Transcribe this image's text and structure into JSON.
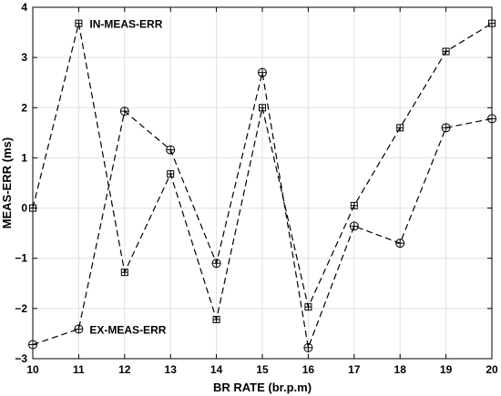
{
  "chart_data": {
    "type": "line",
    "x": [
      10,
      11,
      12,
      13,
      14,
      15,
      16,
      17,
      18,
      19,
      20
    ],
    "xlabel": "BR RATE (br.p.m)",
    "ylabel": "MEAS-ERR (ms)",
    "xlim": [
      10,
      20
    ],
    "ylim": [
      -3,
      4
    ],
    "xticks": [
      "10",
      "11",
      "12",
      "13",
      "14",
      "15",
      "16",
      "17",
      "18",
      "19",
      "20"
    ],
    "yticks": [
      "−3",
      "−2",
      "−1",
      "0",
      "1",
      "2",
      "3",
      "4"
    ],
    "grid": true,
    "series": [
      {
        "name": "IN-MEAS-ERR",
        "marker": "square-plus",
        "line_style": "dashed",
        "color": "#000000",
        "values": [
          0.0,
          3.68,
          -1.28,
          0.68,
          -2.22,
          2.0,
          -1.97,
          0.05,
          1.6,
          3.12,
          3.68
        ]
      },
      {
        "name": "EX-MEAS-ERR",
        "marker": "circle-plus",
        "line_style": "dashed",
        "color": "#000000",
        "values": [
          -2.72,
          -2.41,
          1.93,
          1.16,
          -1.1,
          2.7,
          -2.78,
          -0.36,
          -0.7,
          1.6,
          1.78
        ]
      }
    ],
    "annotations": [
      {
        "text": "IN-MEAS-ERR",
        "x": 11,
        "y": 3.68
      },
      {
        "text": "EX-MEAS-ERR",
        "x": 11,
        "y": -2.41
      }
    ]
  }
}
